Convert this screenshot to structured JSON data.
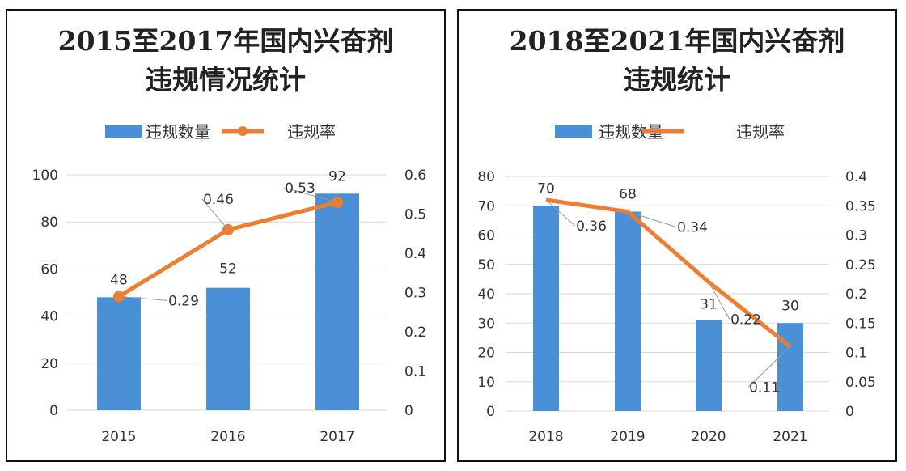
{
  "chart_data": [
    {
      "type": "bar",
      "title_lines": [
        "2015至2017年国内兴奋剂",
        "违规情况统计"
      ],
      "categories": [
        "2015",
        "2016",
        "2017"
      ],
      "series": [
        {
          "name": "违规数量",
          "type": "bar",
          "axis": "left",
          "values": [
            48,
            52,
            92
          ],
          "labels": [
            "48",
            "52",
            "92"
          ],
          "color": "#4a90d6"
        },
        {
          "name": "违规率",
          "type": "line",
          "axis": "right",
          "markers": true,
          "values": [
            0.29,
            0.46,
            0.53
          ],
          "labels": [
            "0.29",
            "0.46",
            "0.53"
          ],
          "color": "#ed7d31"
        }
      ],
      "y_left": {
        "range": [
          0,
          100
        ],
        "ticks": [
          "0",
          "20",
          "40",
          "60",
          "80",
          "100"
        ]
      },
      "y_right": {
        "range": [
          0,
          0.6
        ],
        "ticks": [
          "0",
          "0.1",
          "0.2",
          "0.3",
          "0.4",
          "0.5",
          "0.6"
        ]
      },
      "grid": true,
      "legend": "top"
    },
    {
      "type": "bar",
      "title_lines": [
        "2018至2021年国内兴奋剂",
        "违规统计"
      ],
      "categories": [
        "2018",
        "2019",
        "2020",
        "2021"
      ],
      "series": [
        {
          "name": "违规数量",
          "type": "bar",
          "axis": "left",
          "values": [
            70,
            68,
            31,
            30
          ],
          "labels": [
            "70",
            "68",
            "31",
            "30"
          ],
          "color": "#4a90d6"
        },
        {
          "name": "违规率",
          "type": "line",
          "axis": "right",
          "markers": false,
          "values": [
            0.36,
            0.34,
            0.22,
            0.11
          ],
          "labels": [
            "0.36",
            "0.34",
            "0.22",
            "0.11"
          ],
          "color": "#ed7d31"
        }
      ],
      "y_left": {
        "range": [
          0,
          80
        ],
        "ticks": [
          "0",
          "10",
          "20",
          "30",
          "40",
          "50",
          "60",
          "70",
          "80"
        ]
      },
      "y_right": {
        "range": [
          0,
          0.4
        ],
        "ticks": [
          "0",
          "0.05",
          "0.1",
          "0.15",
          "0.2",
          "0.25",
          "0.3",
          "0.35",
          "0.4"
        ]
      },
      "grid": true,
      "legend": "top"
    }
  ]
}
